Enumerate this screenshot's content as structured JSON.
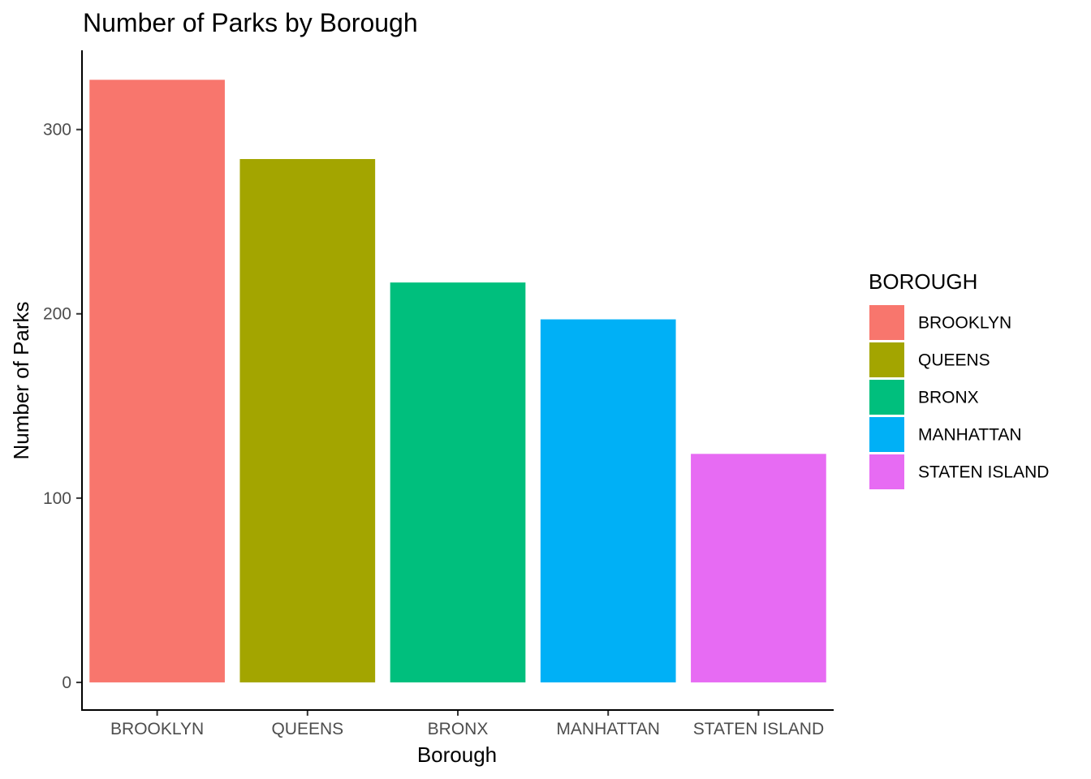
{
  "chart_data": {
    "type": "bar",
    "title": "Number of Parks by Borough",
    "xlabel": "Borough",
    "ylabel": "Number of Parks",
    "categories": [
      "BROOKLYN",
      "QUEENS",
      "BRONX",
      "MANHATTAN",
      "STATEN ISLAND"
    ],
    "values": [
      327,
      284,
      217,
      197,
      124
    ],
    "colors": [
      "#F8766D",
      "#A3A500",
      "#00BF7D",
      "#00B0F6",
      "#E76BF3"
    ],
    "yticks": [
      0,
      100,
      200,
      300
    ],
    "ylim": [
      -15,
      343
    ],
    "grid": false,
    "legend": {
      "title": "BOROUGH",
      "placement": "right",
      "entries": [
        "BROOKLYN",
        "QUEENS",
        "BRONX",
        "MANHATTAN",
        "STATEN ISLAND"
      ]
    }
  }
}
